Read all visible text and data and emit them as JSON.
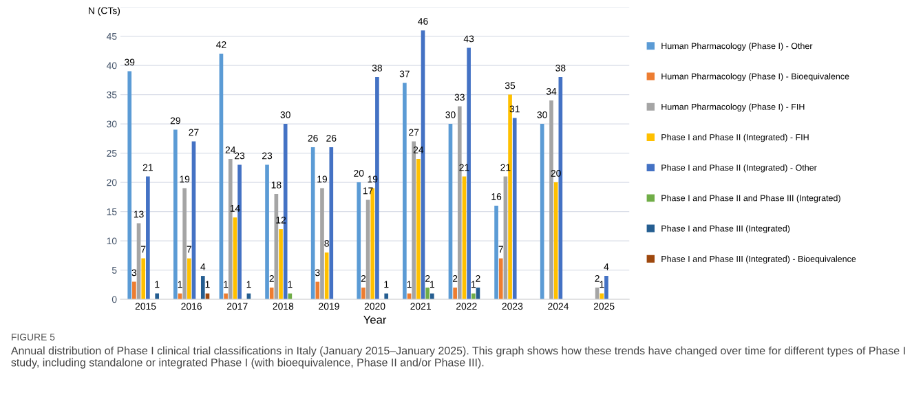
{
  "chart_data": {
    "type": "bar",
    "title": "FIGURE 5",
    "subtitle": "Annual distribution of Phase I clinical trial classifications in Italy (January 2015–January 2025). This graph shows how these trends have changed over time for different types of Phase I study, including standalone or integrated Phase I (with bioequivalence, Phase II and/or Phase III).",
    "xlabel": "Year",
    "ylabel": "N (CTs)",
    "categories": [
      "2015",
      "2016",
      "2017",
      "2018",
      "2019",
      "2020",
      "2021",
      "2022",
      "2023",
      "2024",
      "2025"
    ],
    "series": [
      {
        "name": "Human Pharmacology (Phase I) - Other",
        "color": "#5b9bd5",
        "values": [
          39,
          29,
          42,
          23,
          26,
          20,
          37,
          30,
          16,
          30,
          null
        ]
      },
      {
        "name": "Human Pharmacology (Phase I) - Bioequivalence",
        "color": "#ed7d31",
        "values": [
          3,
          1,
          1,
          2,
          3,
          2,
          1,
          2,
          7,
          null,
          null
        ]
      },
      {
        "name": "Human Pharmacology (Phase I) - FIH",
        "color": "#a5a5a5",
        "values": [
          13,
          19,
          24,
          18,
          19,
          17,
          27,
          33,
          21,
          34,
          2
        ]
      },
      {
        "name": "Phase I and Phase II (Integrated) - FIH",
        "color": "#ffc000",
        "values": [
          7,
          7,
          14,
          12,
          8,
          19,
          24,
          21,
          35,
          20,
          1
        ]
      },
      {
        "name": "Phase I and Phase II (Integrated) - Other",
        "color": "#4472c4",
        "values": [
          21,
          27,
          23,
          30,
          26,
          38,
          46,
          43,
          31,
          38,
          4
        ]
      },
      {
        "name": "Phase I and Phase II and Phase III (Integrated)",
        "color": "#70ad47",
        "values": [
          null,
          null,
          null,
          1,
          null,
          null,
          2,
          1,
          null,
          null,
          null
        ]
      },
      {
        "name": "Phase I and Phase III (Integrated)",
        "color": "#255e91",
        "values": [
          1,
          4,
          1,
          null,
          null,
          1,
          1,
          2,
          null,
          null,
          null
        ]
      },
      {
        "name": "Phase I and Phase III (Integrated) - Bioequivalence",
        "color": "#9e480e",
        "values": [
          null,
          1,
          null,
          null,
          null,
          null,
          null,
          null,
          null,
          null,
          null
        ]
      }
    ],
    "ylim": [
      0,
      50
    ],
    "yticks": [
      0,
      5,
      10,
      15,
      20,
      25,
      30,
      35,
      40,
      45,
      {
        "value": 50,
        "label": null
      }
    ],
    "grid": "y",
    "legend": "right",
    "data_labels": true
  }
}
